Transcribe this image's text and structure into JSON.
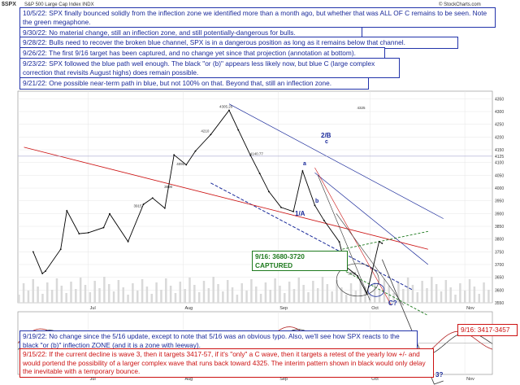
{
  "header": {
    "symbol": "$SPX",
    "subtitle": "S&P 500 Large Cap Index  INDX",
    "source": "© StockCharts.com"
  },
  "annotations": {
    "n1": "10/5/22:  SPX finally bounced solidly from the inflection zone we identified more than a month ago, but whether that was ALL OF C remains to be seen.  Note the green megaphone.",
    "n2": "9/30/22:  No material change, still an inflection zone, and still potentially-dangerous for bulls.",
    "n3": "9/28/22:  Bulls need to recover the broken blue channel, SPX is in a dangerous position as long as it remains below that channel.",
    "n4": "9/26/22:  The first 9/16 target has been captured, and no change yet since that projection (annotation at bottom).",
    "n5": "9/23/22:  SPX followed the blue path well enough.  The black \"or (b)\" appears less likely now, but blue C (large complex correction that revisits August highs) does remain possible.",
    "n6": "9/21/22:  One possible near-term path in blue, but not 100% on that.  Beyond that, still an inflection zone.",
    "captured": "9/16:  3680-3720\nCAPTURED",
    "n7": "9/19/22:  No change since the 5/16 update, except to note that 5/16 was an obvious typo.  Also, we'll see how SPX reacts to the black \"or (b)\" inflection ZONE (and it is a zone with leeway).",
    "target2": "9/16:  3417-3457",
    "n8": "9/15/22:  If the current decline is wave 3, then it targets 3417-57, if it's \"only\" a C wave, then it targets a retest of the yearly low +/- and would portend the possibility of a larger complex wave that runs back toward 4325.  The interim pattern shown in black would only delay the inevitable with a temporary bounce."
  },
  "wave_labels": {
    "w2b": "2/B",
    "wc": "c",
    "wa": "a",
    "w1a": "1/A",
    "wb": "b",
    "wc2": "C?",
    "w3": "3?"
  },
  "chart_data": {
    "type": "line",
    "title": "$SPX",
    "x_tick_labels": [
      "Jul",
      "Aug",
      "Sep",
      "Oct",
      "Nov"
    ],
    "indicator_x_tick_labels": [
      "Jul",
      "Aug",
      "Sep",
      "Oct",
      "Nov"
    ],
    "y_tick_labels": [
      "4350",
      "4300",
      "4250",
      "4200",
      "4150",
      "4125",
      "4100",
      "4050",
      "4000",
      "3950",
      "3900",
      "3850",
      "3800",
      "3750",
      "3700",
      "3650",
      "3600",
      "3550"
    ],
    "ylim": [
      3550,
      4380
    ],
    "series": [
      {
        "x": [
          "6/13",
          "6/16",
          "6/17",
          "6/22",
          "6/24",
          "6/28",
          "7/1",
          "7/6",
          "7/8",
          "7/14",
          "7/19",
          "7/22",
          "7/26",
          "7/29",
          "8/2",
          "8/5",
          "8/10",
          "8/16",
          "8/19",
          "8/23",
          "8/26",
          "8/29",
          "9/2",
          "9/6",
          "9/9",
          "9/13",
          "9/16",
          "9/21",
          "9/23",
          "9/27",
          "9/30",
          "10/4",
          "10/5"
        ],
        "values": [
          3750,
          3665,
          3674,
          3760,
          3911,
          3821,
          3825,
          3845,
          3899,
          3790,
          3936,
          3961,
          3921,
          4130,
          4091,
          4145,
          4210,
          4305,
          4228,
          4128,
          4057,
          3986,
          3924,
          3908,
          4067,
          3932,
          3873,
          3789,
          3693,
          3655,
          3585,
          3790,
          3783
        ]
      }
    ],
    "price_labels": [
      "4325",
      "4305.20",
      "4210",
      "4140.77",
      "4090",
      "3990",
      "3915",
      "3650"
    ],
    "lines": [
      "blue channel",
      "green megaphone",
      "red trendline",
      "black projection"
    ],
    "grid": true
  },
  "colors": {
    "price": "#000000",
    "blue": "#1a2a9a",
    "green": "#1e7a1e",
    "red": "#cc1111",
    "grid": "#e6e6e6"
  }
}
